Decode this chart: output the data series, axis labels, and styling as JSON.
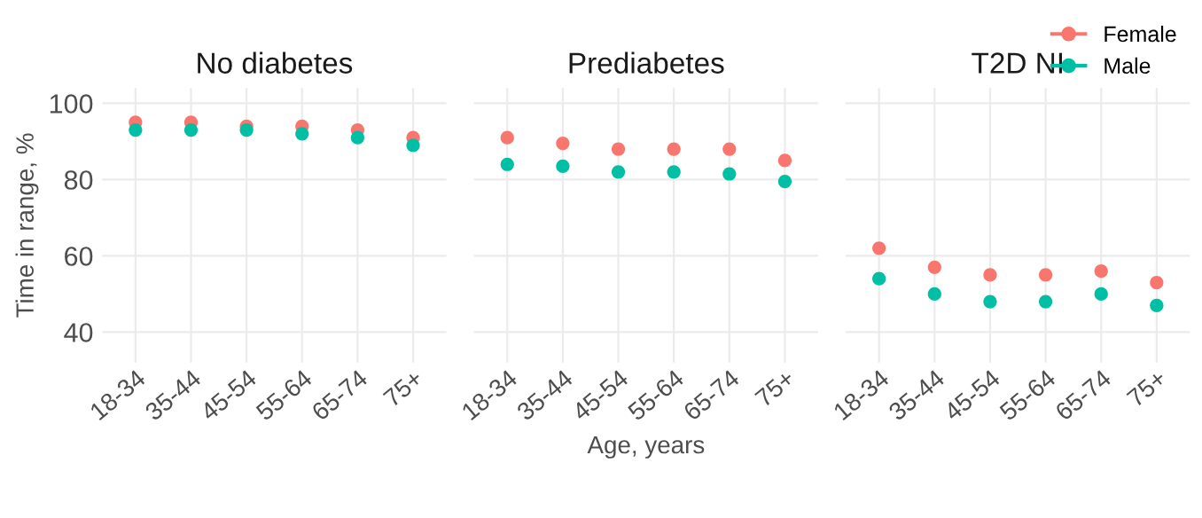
{
  "chart_data": [
    {
      "type": "scatter",
      "title": "No diabetes",
      "ylabel": "Time in range, %",
      "categories": [
        "18-34",
        "35-44",
        "45-54",
        "55-64",
        "65-74",
        "75+"
      ],
      "ylim": [
        32,
        104
      ],
      "yticks": [
        40,
        60,
        80,
        100
      ],
      "grid": true,
      "marker": "circle",
      "series": [
        {
          "color": "#f8766d",
          "values": [
            95,
            95,
            94,
            94,
            93,
            91
          ]
        },
        {
          "color": "#00bfa4",
          "values": [
            93,
            93,
            93,
            92,
            91,
            89
          ]
        }
      ]
    },
    {
      "type": "scatter",
      "title": "Prediabetes",
      "xlabel": "Age, years",
      "categories": [
        "18-34",
        "35-44",
        "45-54",
        "55-64",
        "65-74",
        "75+"
      ],
      "ylim": [
        32,
        104
      ],
      "yticks": [
        40,
        60,
        80,
        100
      ],
      "grid": true,
      "marker": "circle",
      "tick_labels": "x",
      "series": [
        {
          "color": "#f8766d",
          "values": [
            91,
            89.5,
            88,
            88,
            88,
            85
          ]
        },
        {
          "color": "#00bfa4",
          "values": [
            84,
            83.5,
            82,
            82,
            81.5,
            79.5
          ]
        }
      ]
    },
    {
      "type": "scatter",
      "title": "T2D NI",
      "categories": [
        "18-34",
        "35-44",
        "45-54",
        "55-64",
        "65-74",
        "75+"
      ],
      "ylim": [
        32,
        104
      ],
      "yticks": [
        40,
        60,
        80,
        100
      ],
      "grid": true,
      "marker": "circle",
      "tick_labels": "x",
      "legend": "top right",
      "series": [
        {
          "name": "Female",
          "color": "#f8766d",
          "values": [
            62,
            57,
            55,
            55,
            56,
            53
          ]
        },
        {
          "name": "Male",
          "color": "#00bfa4",
          "values": [
            54,
            50,
            48,
            48,
            50,
            47
          ]
        }
      ]
    }
  ]
}
